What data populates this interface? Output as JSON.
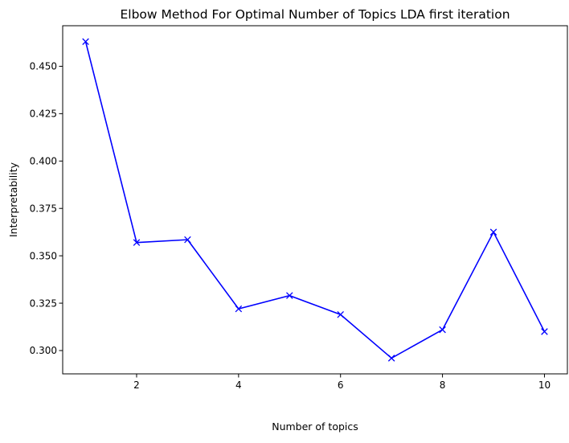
{
  "chart_data": {
    "type": "line",
    "title": "Elbow Method For Optimal Number of Topics LDA first iteration",
    "xlabel": "Number of topics",
    "ylabel": "Interpretability",
    "x": [
      1,
      2,
      3,
      4,
      5,
      6,
      7,
      8,
      9,
      10
    ],
    "series": [
      {
        "values": [
          0.463,
          0.357,
          0.3585,
          0.322,
          0.329,
          0.319,
          0.296,
          0.311,
          0.3625,
          0.31
        ],
        "color": "#0000ff",
        "marker": "x-mark"
      }
    ],
    "xlim": [
      0.55,
      10.45
    ],
    "ylim": [
      0.2877,
      0.4714
    ],
    "xticks": [
      2,
      4,
      6,
      8,
      10
    ],
    "xtick_labels": [
      "2",
      "4",
      "6",
      "8",
      "10"
    ],
    "yticks": [
      0.3,
      0.325,
      0.35,
      0.375,
      0.4,
      0.425,
      0.45
    ],
    "ytick_labels": [
      "0.300",
      "0.325",
      "0.350",
      "0.375",
      "0.400",
      "0.425",
      "0.450"
    ],
    "grid": false,
    "legend": "none"
  }
}
